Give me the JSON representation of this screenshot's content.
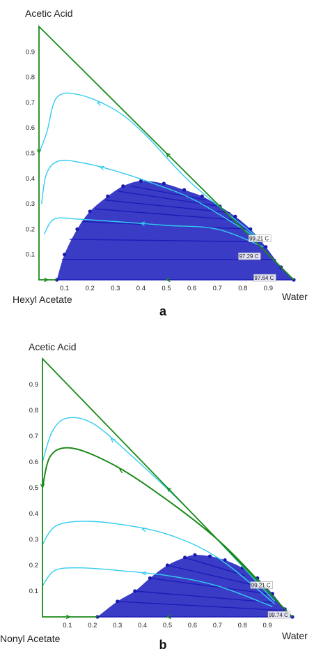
{
  "colors": {
    "phase_fill": "#3a3cc6",
    "tie_line": "#1c1cb8",
    "binodal_point": "#1a1ab0",
    "residue_curve": "#33ccee",
    "distillation_boundary": "#1a8a1a",
    "temp_marker": "#e08a7a"
  },
  "chart_data": [
    {
      "type": "ternary",
      "panel_label": "a",
      "vertices": {
        "top": "Acetic Acid",
        "left": "Hexyl Acetate",
        "right": "Water"
      },
      "x_ticks": [
        "0.1",
        "0.2",
        "0.3",
        "0.4",
        "0.5",
        "0.6",
        "0.7",
        "0.8",
        "0.9"
      ],
      "y_ticks": [
        "0.1",
        "0.2",
        "0.3",
        "0.4",
        "0.5",
        "0.6",
        "0.7",
        "0.8",
        "0.9"
      ],
      "binodal_left": [
        [
          0.07,
          0.0
        ],
        [
          0.1,
          0.1
        ],
        [
          0.15,
          0.2
        ],
        [
          0.2,
          0.27
        ],
        [
          0.27,
          0.33
        ],
        [
          0.33,
          0.37
        ],
        [
          0.4,
          0.39
        ]
      ],
      "binodal_right": [
        [
          0.4,
          0.39
        ],
        [
          0.49,
          0.38
        ],
        [
          0.57,
          0.355
        ],
        [
          0.64,
          0.33
        ],
        [
          0.71,
          0.29
        ],
        [
          0.77,
          0.25
        ],
        [
          0.83,
          0.2
        ],
        [
          0.89,
          0.13
        ],
        [
          0.95,
          0.05
        ],
        [
          1.0,
          0.0
        ]
      ],
      "tie_lines": [
        {
          "from": [
            0.07,
            0.0
          ],
          "to": [
            1.0,
            0.0
          ]
        },
        {
          "from": [
            0.09,
            0.08
          ],
          "to": [
            0.93,
            0.08
          ]
        },
        {
          "from": [
            0.12,
            0.16
          ],
          "to": [
            0.88,
            0.15
          ]
        },
        {
          "from": [
            0.17,
            0.23
          ],
          "to": [
            0.83,
            0.2
          ]
        },
        {
          "from": [
            0.22,
            0.28
          ],
          "to": [
            0.79,
            0.235
          ]
        },
        {
          "from": [
            0.26,
            0.315
          ],
          "to": [
            0.75,
            0.265
          ]
        },
        {
          "from": [
            0.31,
            0.35
          ],
          "to": [
            0.71,
            0.29
          ]
        },
        {
          "from": [
            0.36,
            0.37
          ],
          "to": [
            0.66,
            0.315
          ]
        }
      ],
      "distillation_boundaries": [
        [
          [
            1.0,
            0.0
          ],
          [
            0.0,
            1.0
          ],
          [
            0.0,
            0.0
          ],
          [
            0.07,
            0.0
          ]
        ]
      ],
      "residue_curves": [
        [
          [
            0.88,
            0.15
          ],
          [
            0.6,
            0.38
          ],
          [
            0.42,
            0.57
          ],
          [
            0.3,
            0.67
          ],
          [
            0.16,
            0.73
          ],
          [
            0.07,
            0.72
          ],
          [
            0.03,
            0.58
          ],
          [
            0.0,
            0.5
          ]
        ],
        [
          [
            0.88,
            0.15
          ],
          [
            0.62,
            0.31
          ],
          [
            0.45,
            0.38
          ],
          [
            0.3,
            0.43
          ],
          [
            0.18,
            0.46
          ],
          [
            0.08,
            0.47
          ],
          [
            0.03,
            0.42
          ],
          [
            0.01,
            0.3
          ]
        ],
        [
          [
            0.88,
            0.13
          ],
          [
            0.7,
            0.2
          ],
          [
            0.5,
            0.215
          ],
          [
            0.3,
            0.23
          ],
          [
            0.15,
            0.24
          ],
          [
            0.06,
            0.24
          ],
          [
            0.02,
            0.18
          ]
        ]
      ],
      "temperature_labels": [
        {
          "text": "99.21 C",
          "at": [
            0.85,
            0.155
          ]
        },
        {
          "text": "97.29 C",
          "at": [
            0.81,
            0.085
          ]
        },
        {
          "text": "97.64 C",
          "at": [
            0.87,
            0.0
          ]
        }
      ]
    },
    {
      "type": "ternary",
      "panel_label": "b",
      "vertices": {
        "top": "Acetic Acid",
        "left": "Nonyl Acetate",
        "right": "Water"
      },
      "x_ticks": [
        "0.1",
        "0.2",
        "0.3",
        "0.4",
        "0.5",
        "0.6",
        "0.7",
        "0.8",
        "0.9"
      ],
      "y_ticks": [
        "0.1",
        "0.2",
        "0.3",
        "0.4",
        "0.5",
        "0.6",
        "0.7",
        "0.8",
        "0.9"
      ],
      "binodal_left": [
        [
          0.22,
          0.0
        ],
        [
          0.3,
          0.06
        ],
        [
          0.37,
          0.1
        ],
        [
          0.43,
          0.15
        ],
        [
          0.5,
          0.2
        ],
        [
          0.57,
          0.23
        ],
        [
          0.61,
          0.24
        ]
      ],
      "binodal_right": [
        [
          0.61,
          0.24
        ],
        [
          0.67,
          0.235
        ],
        [
          0.73,
          0.22
        ],
        [
          0.8,
          0.19
        ],
        [
          0.86,
          0.15
        ],
        [
          0.92,
          0.09
        ],
        [
          0.97,
          0.03
        ],
        [
          1.0,
          0.0
        ]
      ],
      "tie_lines": [
        {
          "from": [
            0.22,
            0.0
          ],
          "to": [
            1.0,
            0.0
          ]
        },
        {
          "from": [
            0.3,
            0.06
          ],
          "to": [
            0.96,
            0.025
          ]
        },
        {
          "from": [
            0.37,
            0.1
          ],
          "to": [
            0.93,
            0.055
          ]
        },
        {
          "from": [
            0.43,
            0.15
          ],
          "to": [
            0.9,
            0.09
          ]
        },
        {
          "from": [
            0.5,
            0.2
          ],
          "to": [
            0.86,
            0.12
          ]
        },
        {
          "from": [
            0.57,
            0.23
          ],
          "to": [
            0.81,
            0.16
          ]
        }
      ],
      "distillation_boundaries": [
        [
          [
            1.0,
            0.0
          ],
          [
            0.0,
            1.0
          ],
          [
            0.0,
            0.0
          ],
          [
            0.22,
            0.0
          ]
        ],
        [
          [
            0.94,
            0.06
          ],
          [
            0.7,
            0.3
          ],
          [
            0.4,
            0.52
          ],
          [
            0.22,
            0.62
          ],
          [
            0.1,
            0.655
          ],
          [
            0.03,
            0.62
          ],
          [
            0.0,
            0.5
          ]
        ]
      ],
      "residue_curves": [
        [
          [
            0.93,
            0.06
          ],
          [
            0.6,
            0.4
          ],
          [
            0.35,
            0.63
          ],
          [
            0.2,
            0.75
          ],
          [
            0.1,
            0.77
          ],
          [
            0.04,
            0.72
          ],
          [
            0.0,
            0.6
          ]
        ],
        [
          [
            0.93,
            0.05
          ],
          [
            0.7,
            0.23
          ],
          [
            0.5,
            0.32
          ],
          [
            0.3,
            0.36
          ],
          [
            0.15,
            0.37
          ],
          [
            0.05,
            0.35
          ],
          [
            0.0,
            0.28
          ]
        ],
        [
          [
            0.92,
            0.04
          ],
          [
            0.7,
            0.12
          ],
          [
            0.5,
            0.16
          ],
          [
            0.3,
            0.18
          ],
          [
            0.15,
            0.19
          ],
          [
            0.05,
            0.18
          ],
          [
            0.0,
            0.12
          ]
        ]
      ],
      "temperature_labels": [
        {
          "text": "99.21 C",
          "at": [
            0.86,
            0.115
          ]
        },
        {
          "text": "99.74 C",
          "at": [
            0.93,
            0.0
          ]
        }
      ]
    }
  ]
}
